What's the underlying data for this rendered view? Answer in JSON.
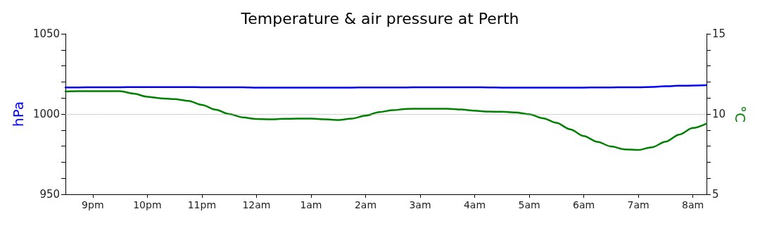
{
  "chart_data": {
    "type": "line",
    "title": "Temperature & air pressure at Perth",
    "ylabel": "hPa",
    "y2label": "°C",
    "categories": [
      null,
      null,
      "9pm",
      null,
      null,
      null,
      "10pm",
      null,
      null,
      null,
      "11pm",
      null,
      null,
      null,
      "12am",
      null,
      null,
      null,
      "1am",
      null,
      null,
      null,
      "2am",
      null,
      null,
      null,
      "3am",
      null,
      null,
      null,
      "4am",
      null,
      null,
      null,
      "5am",
      null,
      null,
      null,
      "6am",
      null,
      null,
      null,
      "7am",
      null,
      null,
      null,
      "8am",
      null
    ],
    "ylim": [
      950,
      1050
    ],
    "yticks": [
      950,
      {
        "value": 960,
        "label": null
      },
      {
        "value": 970,
        "label": null
      },
      {
        "value": 980,
        "label": null
      },
      {
        "value": 990,
        "label": null
      },
      1000,
      {
        "value": 1010,
        "label": null
      },
      {
        "value": 1020,
        "label": null
      },
      {
        "value": 1030,
        "label": null
      },
      {
        "value": 1040,
        "label": null
      },
      1050
    ],
    "y2lim": [
      5,
      15
    ],
    "y2ticks": [
      5,
      {
        "value": 6,
        "label": null
      },
      {
        "value": 7,
        "label": null
      },
      {
        "value": 8,
        "label": null
      },
      {
        "value": 9,
        "label": null
      },
      10,
      {
        "value": 11,
        "label": null
      },
      {
        "value": 12,
        "label": null
      },
      {
        "value": 13,
        "label": null
      },
      {
        "value": 14,
        "label": null
      },
      15
    ],
    "grid": false,
    "marker": "none",
    "line_style": "solid",
    "ref_lines": [
      {
        "axis": "y",
        "value": 1000,
        "color": "#aaaaaa",
        "line_style": "dotted"
      }
    ],
    "series": [
      {
        "color": "#0000ff",
        "values": [
          1016.6,
          1016.6,
          1016.7,
          1016.7,
          1016.7,
          1016.8,
          1016.8,
          1016.8,
          1016.8,
          1016.8,
          1016.7,
          1016.7,
          1016.7,
          1016.7,
          1016.5,
          1016.5,
          1016.5,
          1016.5,
          1016.5,
          1016.5,
          1016.5,
          1016.5,
          1016.6,
          1016.6,
          1016.6,
          1016.6,
          1016.7,
          1016.7,
          1016.7,
          1016.7,
          1016.7,
          1016.6,
          1016.5,
          1016.5,
          1016.4,
          1016.4,
          1016.4,
          1016.4,
          1016.5,
          1016.6,
          1016.6,
          1016.7,
          1016.7,
          1016.9,
          1017.3,
          1017.6,
          1017.8,
          1018.0
        ]
      },
      {
        "color": "#008000",
        "axis": "y2",
        "values": [
          11.4,
          11.42,
          11.43,
          11.43,
          11.42,
          11.27,
          11.08,
          10.98,
          10.93,
          10.82,
          10.57,
          10.27,
          10.0,
          9.79,
          9.69,
          9.67,
          9.7,
          9.71,
          9.71,
          9.67,
          9.63,
          9.72,
          9.9,
          10.12,
          10.24,
          10.32,
          10.33,
          10.33,
          10.33,
          10.28,
          10.21,
          10.15,
          10.14,
          10.1,
          9.99,
          9.74,
          9.45,
          9.05,
          8.63,
          8.27,
          7.98,
          7.8,
          7.76,
          7.93,
          8.28,
          8.72,
          9.13,
          9.4
        ]
      }
    ]
  }
}
